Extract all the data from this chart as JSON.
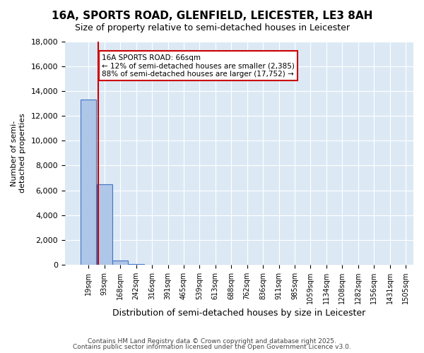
{
  "title": "16A, SPORTS ROAD, GLENFIELD, LEICESTER, LE3 8AH",
  "subtitle": "Size of property relative to semi-detached houses in Leicester",
  "xlabel": "Distribution of semi-detached houses by size in Leicester",
  "ylabel": "Number of semi-\ndetached properties",
  "property_size": 66,
  "annotation_title": "16A SPORTS ROAD: 66sqm",
  "annotation_line1": "← 12% of semi-detached houses are smaller (2,385)",
  "annotation_line2": "88% of semi-detached houses are larger (17,752) →",
  "bins": [
    19,
    93,
    168,
    242,
    316,
    391,
    465,
    539,
    613,
    688,
    762,
    836,
    911,
    985,
    1059,
    1134,
    1208,
    1282,
    1356,
    1431,
    1505
  ],
  "counts": [
    13350,
    6500,
    350,
    60,
    15,
    5,
    3,
    2,
    1,
    1,
    1,
    1,
    1,
    0,
    0,
    0,
    0,
    0,
    0,
    0
  ],
  "bar_color": "#aec6e8",
  "bar_edge_color": "#4472c4",
  "red_line_color": "#cc0000",
  "annotation_box_color": "#cc0000",
  "bg_color": "#dce9f5",
  "grid_color": "#ffffff",
  "ylim": [
    0,
    18000
  ],
  "yticks": [
    0,
    2000,
    4000,
    6000,
    8000,
    10000,
    12000,
    14000,
    16000,
    18000
  ],
  "footer1": "Contains HM Land Registry data © Crown copyright and database right 2025.",
  "footer2": "Contains public sector information licensed under the Open Government Licence v3.0."
}
